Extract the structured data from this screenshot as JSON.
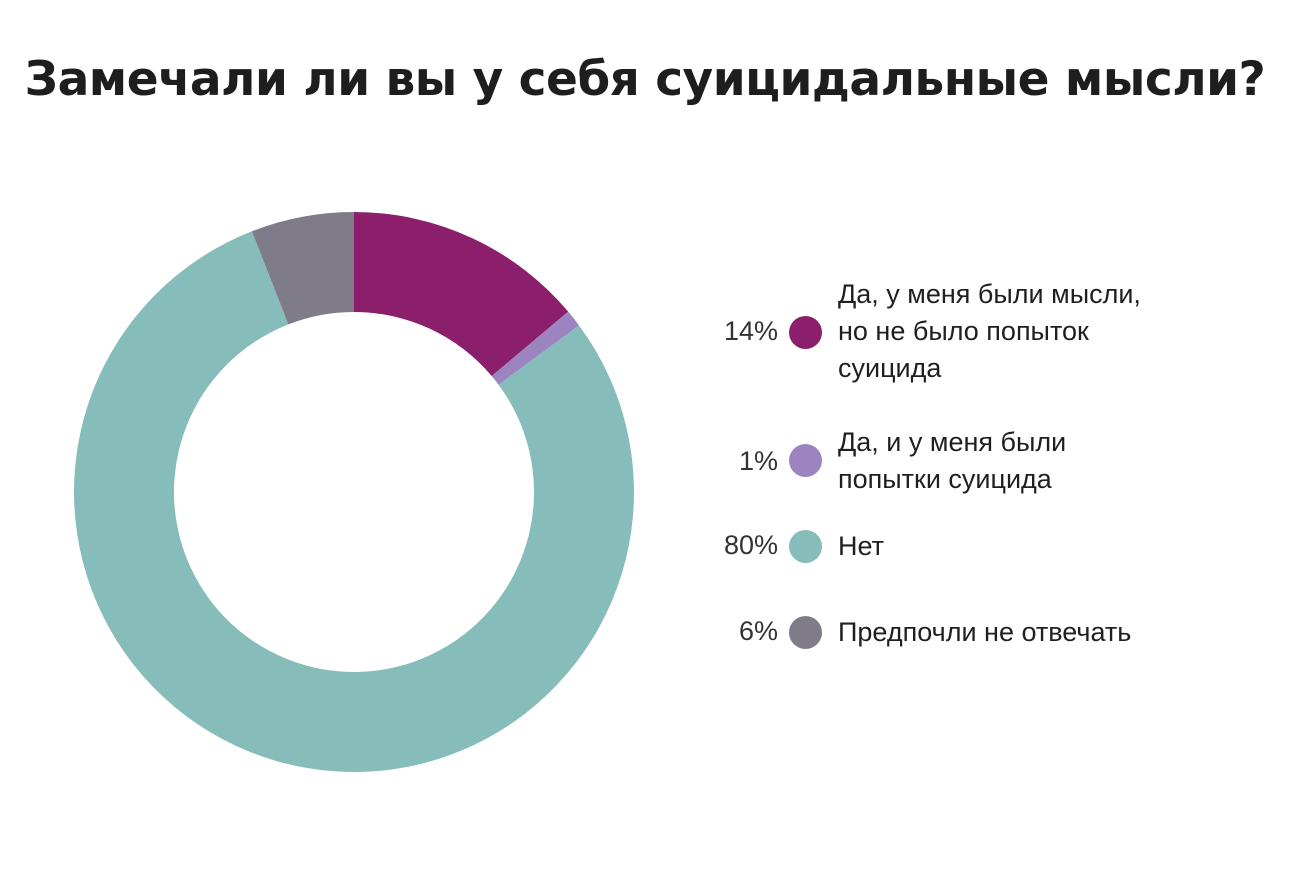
{
  "chart_data": {
    "type": "pie",
    "variant": "donut",
    "title": "Замечали ли вы у себя суицидальные мысли?",
    "series": [
      {
        "name": "Да, у меня были мысли, но не было попыток суицида",
        "value": 14,
        "label": "14%",
        "color": "#8b1f6c"
      },
      {
        "name": "Да, и у меня были попытки суицида",
        "value": 1,
        "label": "1%",
        "color": "#9b84bf"
      },
      {
        "name": "Нет",
        "value": 80,
        "label": "80%",
        "color": "#86bcb9"
      },
      {
        "name": "Предпочли не отвечать",
        "value": 6,
        "label": "6%",
        "color": "#7f7b88"
      }
    ],
    "legend_position": "right"
  }
}
